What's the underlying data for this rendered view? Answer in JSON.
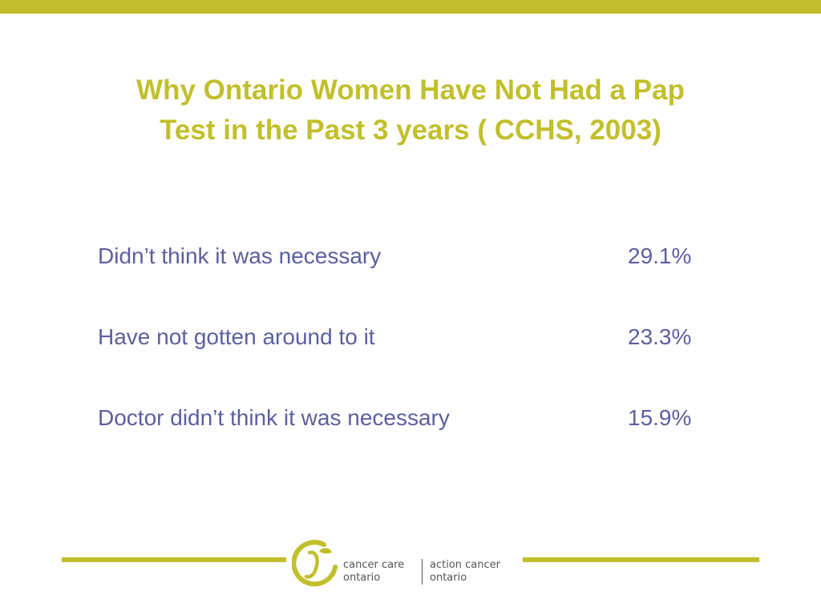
{
  "slide": {
    "title_line1": "Why Ontario Women Have Not Had a Pap",
    "title_line2": "Test in the Past 3 years ( CCHS, 2003)",
    "reasons": [
      {
        "label": "Didn’t think it was necessary",
        "value": "29.1%"
      },
      {
        "label": "Have not gotten around to it",
        "value": "23.3%"
      },
      {
        "label": "Doctor didn’t think it was necessary",
        "value": "15.9%"
      }
    ]
  },
  "footer": {
    "logo_en_line1": "cancer care",
    "logo_en_line2": "ontario",
    "logo_fr_line1": "action cancer",
    "logo_fr_line2": "ontario",
    "accent_color": "#c2bf2c",
    "logo_icon": "cancer-care-ontario-logo-icon"
  },
  "colors": {
    "title": "#c2bf2c",
    "body_text": "#5c5f9e"
  }
}
